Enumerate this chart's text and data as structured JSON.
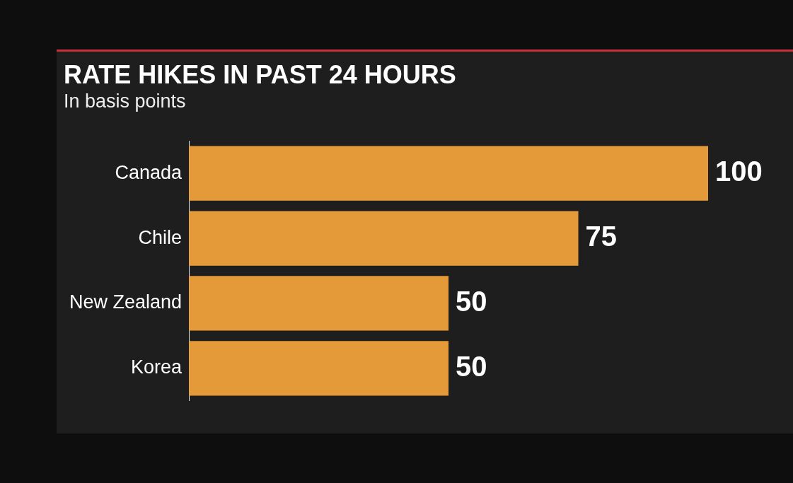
{
  "chart_data": {
    "type": "bar",
    "orientation": "horizontal",
    "title": "RATE HIKES IN PAST 24 HOURS",
    "subtitle": "In basis points",
    "categories": [
      "Canada",
      "Chile",
      "New Zealand",
      "Korea"
    ],
    "values": [
      100,
      75,
      50,
      50
    ],
    "color": "#e59a3a",
    "data_labels": true
  }
}
